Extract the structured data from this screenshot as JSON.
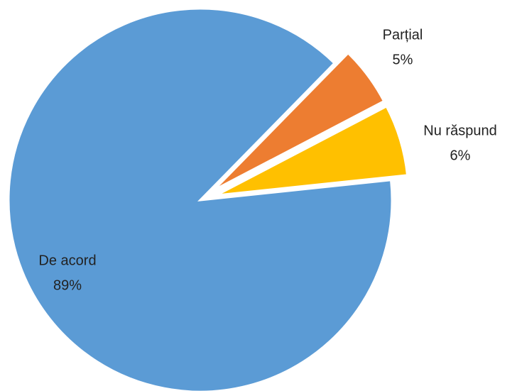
{
  "chart_data": {
    "type": "pie",
    "categories": [
      "De acord",
      "Parțial",
      "Nu răspund"
    ],
    "values": [
      89,
      5,
      6
    ],
    "value_labels": [
      "89%",
      "5%",
      "6%"
    ],
    "colors": [
      "#5b9bd5",
      "#ed7d31",
      "#ffc000"
    ]
  }
}
